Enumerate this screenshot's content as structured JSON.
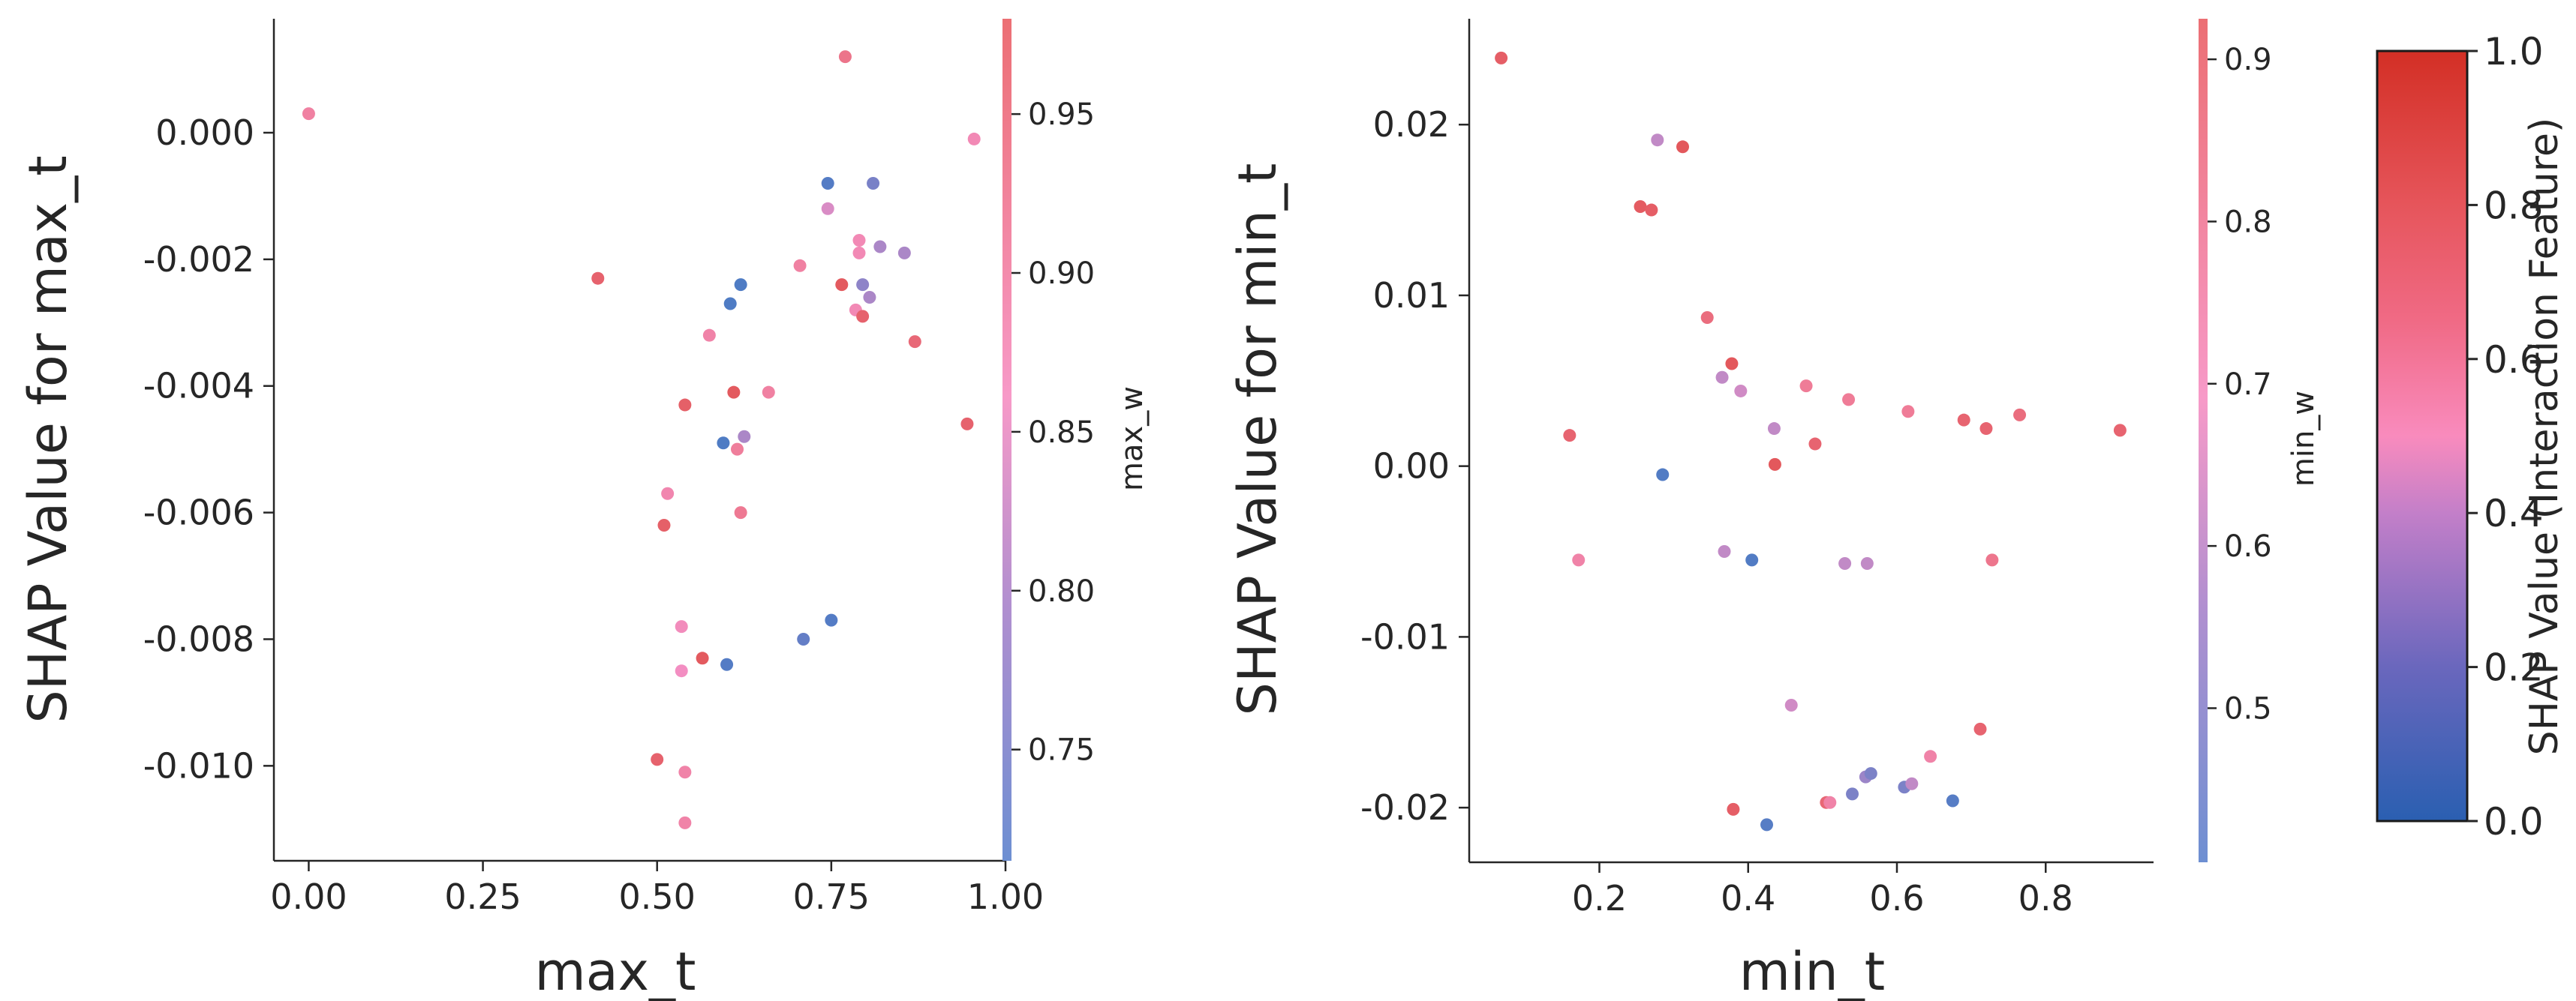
{
  "chart_data": [
    {
      "type": "scatter",
      "xlabel": "max_t",
      "ylabel": "SHAP Value for max_t",
      "xlim": [
        -0.05,
        1.0
      ],
      "ylim": [
        -0.0115,
        0.0018
      ],
      "xticks": [
        "0.00",
        "0.25",
        "0.50",
        "0.75",
        "1.00"
      ],
      "xtick_values": [
        0.0,
        0.25,
        0.5,
        0.75,
        1.0
      ],
      "yticks": [
        "0.000",
        "-0.002",
        "-0.004",
        "-0.006",
        "-0.008",
        "-0.010"
      ],
      "ytick_values": [
        0.0,
        -0.002,
        -0.004,
        -0.006,
        -0.008,
        -0.01
      ],
      "colorbar": {
        "label": "max_w",
        "range": [
          0.715,
          0.98
        ],
        "ticks": [
          "0.75",
          "0.80",
          "0.85",
          "0.90",
          "0.95"
        ],
        "tick_values": [
          0.75,
          0.8,
          0.85,
          0.9,
          0.95
        ]
      },
      "points": [
        {
          "x": 0.0,
          "y": 0.0003,
          "c": 0.9
        },
        {
          "x": 0.415,
          "y": -0.0023,
          "c": 0.96
        },
        {
          "x": 0.5,
          "y": -0.0099,
          "c": 0.96
        },
        {
          "x": 0.51,
          "y": -0.0062,
          "c": 0.965
        },
        {
          "x": 0.515,
          "y": -0.0057,
          "c": 0.88
        },
        {
          "x": 0.535,
          "y": -0.0078,
          "c": 0.86
        },
        {
          "x": 0.535,
          "y": -0.0085,
          "c": 0.85
        },
        {
          "x": 0.54,
          "y": -0.0043,
          "c": 0.965
        },
        {
          "x": 0.54,
          "y": -0.0101,
          "c": 0.89
        },
        {
          "x": 0.54,
          "y": -0.0109,
          "c": 0.89
        },
        {
          "x": 0.565,
          "y": -0.0083,
          "c": 0.975
        },
        {
          "x": 0.575,
          "y": -0.0032,
          "c": 0.89
        },
        {
          "x": 0.595,
          "y": -0.0049,
          "c": 0.72
        },
        {
          "x": 0.6,
          "y": -0.0084,
          "c": 0.725
        },
        {
          "x": 0.605,
          "y": -0.0027,
          "c": 0.72
        },
        {
          "x": 0.61,
          "y": -0.0041,
          "c": 0.975
        },
        {
          "x": 0.615,
          "y": -0.005,
          "c": 0.91
        },
        {
          "x": 0.62,
          "y": -0.0024,
          "c": 0.72
        },
        {
          "x": 0.62,
          "y": -0.006,
          "c": 0.92
        },
        {
          "x": 0.625,
          "y": -0.0048,
          "c": 0.8
        },
        {
          "x": 0.66,
          "y": -0.0041,
          "c": 0.9
        },
        {
          "x": 0.705,
          "y": -0.0021,
          "c": 0.9
        },
        {
          "x": 0.71,
          "y": -0.008,
          "c": 0.74
        },
        {
          "x": 0.745,
          "y": -0.0008,
          "c": 0.725
        },
        {
          "x": 0.745,
          "y": -0.0012,
          "c": 0.83
        },
        {
          "x": 0.75,
          "y": -0.0077,
          "c": 0.725
        },
        {
          "x": 0.765,
          "y": -0.0024,
          "c": 0.975
        },
        {
          "x": 0.77,
          "y": 0.0012,
          "c": 0.93
        },
        {
          "x": 0.785,
          "y": -0.0028,
          "c": 0.87
        },
        {
          "x": 0.79,
          "y": -0.0017,
          "c": 0.87
        },
        {
          "x": 0.79,
          "y": -0.0019,
          "c": 0.87
        },
        {
          "x": 0.795,
          "y": -0.0029,
          "c": 0.96
        },
        {
          "x": 0.795,
          "y": -0.0024,
          "c": 0.78
        },
        {
          "x": 0.805,
          "y": -0.0026,
          "c": 0.8
        },
        {
          "x": 0.81,
          "y": -0.0008,
          "c": 0.76
        },
        {
          "x": 0.82,
          "y": -0.0018,
          "c": 0.8
        },
        {
          "x": 0.855,
          "y": -0.0019,
          "c": 0.8
        },
        {
          "x": 0.87,
          "y": -0.0033,
          "c": 0.95
        },
        {
          "x": 0.945,
          "y": -0.0046,
          "c": 0.96
        },
        {
          "x": 0.955,
          "y": -0.0001,
          "c": 0.87
        }
      ]
    },
    {
      "type": "scatter",
      "xlabel": "min_t",
      "ylabel": "SHAP Value for min_t",
      "xlim": [
        0.025,
        0.945
      ],
      "ylim": [
        -0.0232,
        0.0262
      ],
      "xticks": [
        "0.2",
        "0.4",
        "0.6",
        "0.8"
      ],
      "xtick_values": [
        0.2,
        0.4,
        0.6,
        0.8
      ],
      "yticks": [
        "0.02",
        "0.01",
        "0.00",
        "-0.01",
        "-0.02"
      ],
      "ytick_values": [
        0.02,
        0.01,
        0.0,
        -0.01,
        -0.02
      ],
      "colorbar": {
        "label": "min_w",
        "range": [
          0.405,
          0.925
        ],
        "ticks": [
          "0.5",
          "0.6",
          "0.7",
          "0.8",
          "0.9"
        ],
        "tick_values": [
          0.5,
          0.6,
          0.7,
          0.8,
          0.9
        ]
      },
      "points": [
        {
          "x": 0.068,
          "y": 0.0239,
          "c": 0.9
        },
        {
          "x": 0.16,
          "y": 0.0018,
          "c": 0.88
        },
        {
          "x": 0.172,
          "y": -0.0055,
          "c": 0.75
        },
        {
          "x": 0.255,
          "y": 0.0152,
          "c": 0.91
        },
        {
          "x": 0.27,
          "y": 0.015,
          "c": 0.9
        },
        {
          "x": 0.278,
          "y": 0.0191,
          "c": 0.6
        },
        {
          "x": 0.285,
          "y": -0.0005,
          "c": 0.42
        },
        {
          "x": 0.312,
          "y": 0.0187,
          "c": 0.92
        },
        {
          "x": 0.345,
          "y": 0.0087,
          "c": 0.85
        },
        {
          "x": 0.365,
          "y": 0.0052,
          "c": 0.6
        },
        {
          "x": 0.368,
          "y": -0.005,
          "c": 0.6
        },
        {
          "x": 0.378,
          "y": 0.006,
          "c": 0.92
        },
        {
          "x": 0.38,
          "y": -0.0201,
          "c": 0.9
        },
        {
          "x": 0.39,
          "y": 0.0044,
          "c": 0.62
        },
        {
          "x": 0.405,
          "y": -0.0055,
          "c": 0.42
        },
        {
          "x": 0.425,
          "y": -0.021,
          "c": 0.43
        },
        {
          "x": 0.435,
          "y": 0.0022,
          "c": 0.6
        },
        {
          "x": 0.436,
          "y": 0.0001,
          "c": 0.92
        },
        {
          "x": 0.458,
          "y": -0.014,
          "c": 0.62
        },
        {
          "x": 0.478,
          "y": 0.0047,
          "c": 0.8
        },
        {
          "x": 0.49,
          "y": 0.0013,
          "c": 0.88
        },
        {
          "x": 0.505,
          "y": -0.0197,
          "c": 0.87
        },
        {
          "x": 0.51,
          "y": -0.0197,
          "c": 0.75
        },
        {
          "x": 0.53,
          "y": -0.0057,
          "c": 0.6
        },
        {
          "x": 0.535,
          "y": 0.0039,
          "c": 0.8
        },
        {
          "x": 0.54,
          "y": -0.0192,
          "c": 0.5
        },
        {
          "x": 0.558,
          "y": -0.0182,
          "c": 0.55
        },
        {
          "x": 0.56,
          "y": -0.0057,
          "c": 0.6
        },
        {
          "x": 0.565,
          "y": -0.018,
          "c": 0.5
        },
        {
          "x": 0.61,
          "y": -0.0188,
          "c": 0.5
        },
        {
          "x": 0.615,
          "y": 0.0032,
          "c": 0.8
        },
        {
          "x": 0.62,
          "y": -0.0186,
          "c": 0.6
        },
        {
          "x": 0.645,
          "y": -0.017,
          "c": 0.75
        },
        {
          "x": 0.675,
          "y": -0.0196,
          "c": 0.43
        },
        {
          "x": 0.69,
          "y": 0.0027,
          "c": 0.88
        },
        {
          "x": 0.712,
          "y": -0.0154,
          "c": 0.88
        },
        {
          "x": 0.72,
          "y": 0.0022,
          "c": 0.88
        },
        {
          "x": 0.728,
          "y": -0.0055,
          "c": 0.82
        },
        {
          "x": 0.765,
          "y": 0.003,
          "c": 0.85
        },
        {
          "x": 0.9,
          "y": 0.0021,
          "c": 0.88
        }
      ]
    }
  ],
  "global_colorbar": {
    "label": "SHAP Value (Interaction Feature)",
    "range": [
      0.0,
      1.0
    ],
    "ticks": [
      "0.0",
      "0.2",
      "0.4",
      "0.6",
      "0.8",
      "1.0"
    ],
    "tick_values": [
      0.0,
      0.2,
      0.4,
      0.6,
      0.8,
      1.0
    ]
  },
  "colors": {
    "low": "#4a7bc4",
    "mid_low": "#a77fc9",
    "mid": "#f98bbd",
    "high": "#e65a62",
    "top": "#d32f25"
  }
}
